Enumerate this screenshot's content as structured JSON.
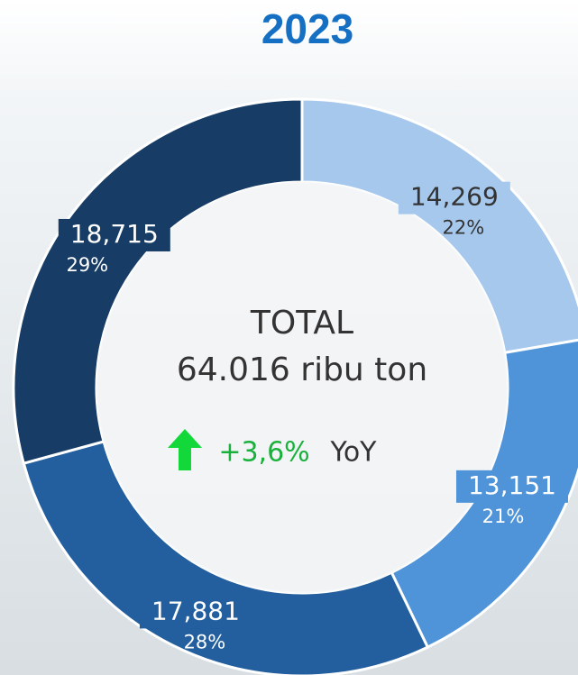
{
  "chart_data": {
    "type": "donut",
    "title": "2023",
    "categories": [
      null,
      null,
      null,
      null
    ],
    "values": [
      14269,
      13151,
      17881,
      18715
    ],
    "value_labels": [
      "14,269",
      "13,151",
      "17,881",
      "18,715"
    ],
    "percentages": [
      22,
      21,
      28,
      29
    ],
    "percentage_labels": [
      "22%",
      "21%",
      "28%",
      "29%"
    ],
    "colors": [
      "#a6c8ec",
      "#4f94d9",
      "#235f9f",
      "#173c66"
    ],
    "center": {
      "title": "TOTAL",
      "total": "64.016 ribu ton",
      "change": "+3,6%",
      "change_unit": "YoY"
    }
  }
}
